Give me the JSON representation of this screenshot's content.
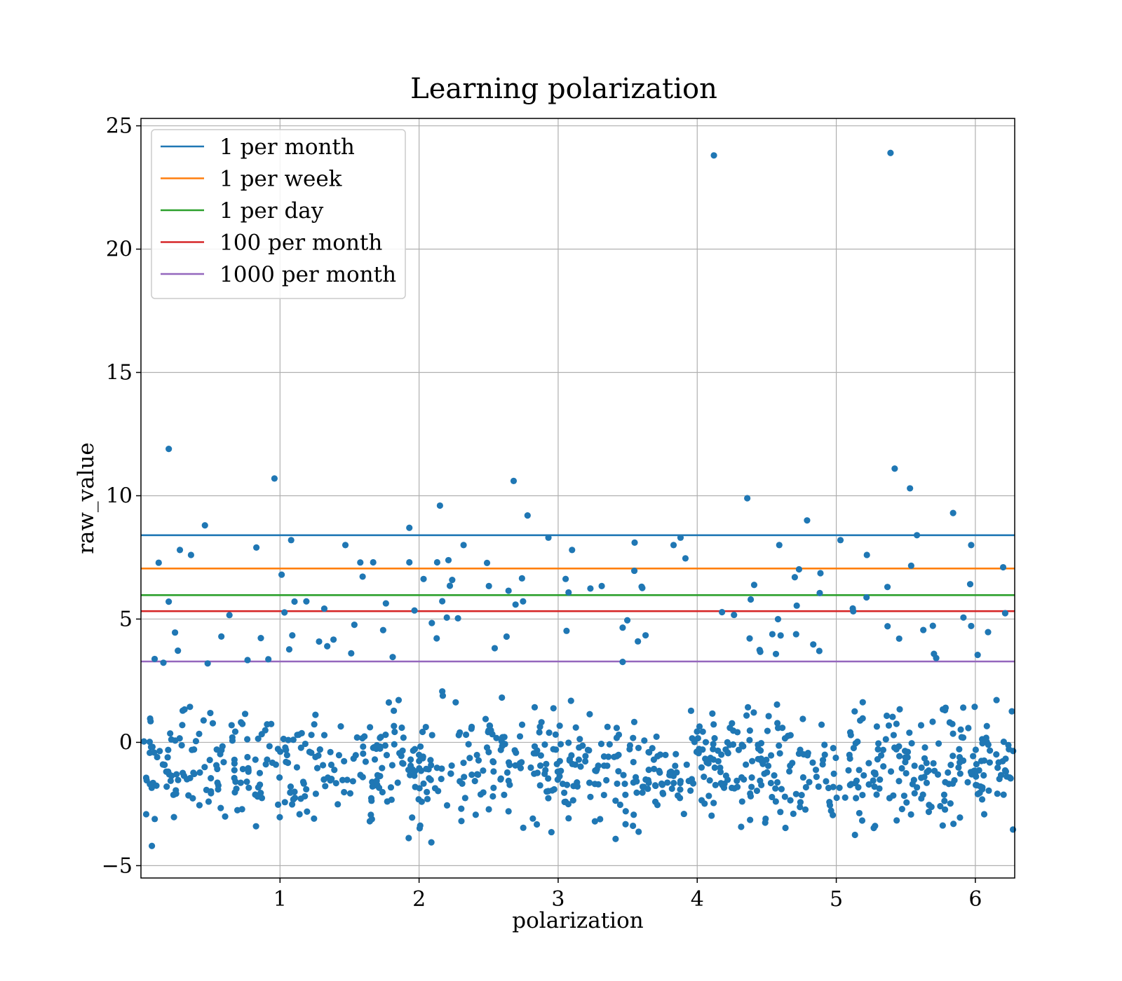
{
  "chart_data": {
    "type": "scatter",
    "title": "Learning polarization",
    "xlabel": "polarization",
    "ylabel": "raw_value",
    "xlim": [
      0.0,
      6.283
    ],
    "ylim": [
      -5.5,
      25.3
    ],
    "x_ticks": [
      1,
      2,
      3,
      4,
      5,
      6
    ],
    "y_ticks": [
      -5,
      0,
      5,
      10,
      15,
      20,
      25
    ],
    "x_tick_labels": [
      "1",
      "2",
      "3",
      "4",
      "5",
      "6"
    ],
    "y_tick_labels": [
      "−5",
      "0",
      "5",
      "10",
      "15",
      "20",
      "25"
    ],
    "grid": true,
    "legend_position": "top-left",
    "scatter_color": "#1f77b4",
    "scatter_point_count": 1000,
    "scatter_distribution": {
      "bulk_mean": -1.0,
      "bulk_spread": 1.6,
      "bulk_min": -4.2,
      "bulk_max": 3.0
    },
    "notable_points": [
      {
        "x": 4.12,
        "y": 23.8
      },
      {
        "x": 5.39,
        "y": 23.9
      },
      {
        "x": 0.2,
        "y": 11.9
      },
      {
        "x": 5.42,
        "y": 11.1
      },
      {
        "x": 0.96,
        "y": 10.7
      },
      {
        "x": 2.68,
        "y": 10.6
      },
      {
        "x": 5.53,
        "y": 10.3
      },
      {
        "x": 4.36,
        "y": 9.9
      },
      {
        "x": 2.15,
        "y": 9.6
      },
      {
        "x": 5.84,
        "y": 9.3
      },
      {
        "x": 2.78,
        "y": 9.2
      },
      {
        "x": 4.79,
        "y": 9.0
      },
      {
        "x": 0.46,
        "y": 8.8
      },
      {
        "x": 1.93,
        "y": 8.7
      },
      {
        "x": 5.58,
        "y": 8.4
      },
      {
        "x": 2.93,
        "y": 8.3
      },
      {
        "x": 3.88,
        "y": 8.3
      },
      {
        "x": 1.08,
        "y": 8.2
      },
      {
        "x": 5.03,
        "y": 8.2
      },
      {
        "x": 3.55,
        "y": 8.1
      },
      {
        "x": 1.47,
        "y": 8.0
      },
      {
        "x": 2.32,
        "y": 8.0
      },
      {
        "x": 5.97,
        "y": 8.0
      },
      {
        "x": 4.59,
        "y": 8.0
      },
      {
        "x": 0.83,
        "y": 7.9
      },
      {
        "x": 0.28,
        "y": 7.8
      },
      {
        "x": 3.1,
        "y": 7.8
      },
      {
        "x": 3.83,
        "y": 8.0
      },
      {
        "x": 0.36,
        "y": 7.6
      },
      {
        "x": 5.22,
        "y": 7.6
      },
      {
        "x": 1.67,
        "y": 7.3
      },
      {
        "x": 2.13,
        "y": 7.3
      },
      {
        "x": 1.93,
        "y": 7.3
      },
      {
        "x": 6.2,
        "y": 7.1
      }
    ],
    "series": [
      {
        "name": "1 per month",
        "color": "#1f77b4",
        "y": 8.4
      },
      {
        "name": "1 per week",
        "color": "#ff7f0e",
        "y": 7.05
      },
      {
        "name": "1 per day",
        "color": "#2ca02c",
        "y": 5.97
      },
      {
        "name": "100 per month",
        "color": "#d62728",
        "y": 5.32
      },
      {
        "name": "1000 per month",
        "color": "#9467bd",
        "y": 3.28
      }
    ]
  }
}
